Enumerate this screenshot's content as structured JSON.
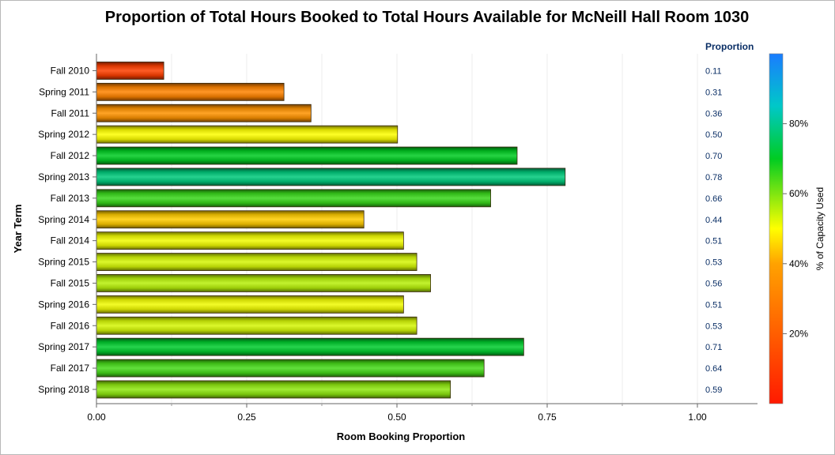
{
  "chart_data": {
    "type": "bar",
    "orientation": "horizontal",
    "title": "Proportion of Total Hours Booked to Total Hours Available for McNeill Hall Room 1030",
    "xlabel": "Room Booking Proportion",
    "ylabel": "Year Term",
    "xlim": [
      0,
      1.1
    ],
    "x_ticks": [
      "0.00",
      "0.25",
      "0.50",
      "0.75",
      "1.00"
    ],
    "categories": [
      "Fall 2010",
      "Spring 2011",
      "Fall 2011",
      "Spring 2012",
      "Fall 2012",
      "Spring 2013",
      "Fall 2013",
      "Spring 2014",
      "Fall 2014",
      "Spring 2015",
      "Fall 2015",
      "Spring 2016",
      "Fall 2016",
      "Spring 2017",
      "Fall 2017",
      "Spring 2018"
    ],
    "values": [
      0.112,
      0.312,
      0.357,
      0.501,
      0.7,
      0.78,
      0.656,
      0.445,
      0.511,
      0.533,
      0.556,
      0.511,
      0.533,
      0.711,
      0.645,
      0.589
    ],
    "value_labels": [
      "0.11",
      "0.31",
      "0.36",
      "0.50",
      "0.70",
      "0.78",
      "0.66",
      "0.44",
      "0.51",
      "0.53",
      "0.56",
      "0.51",
      "0.53",
      "0.71",
      "0.64",
      "0.59"
    ],
    "value_column_header": "Proportion",
    "grid": "vertical",
    "colorbar": {
      "label": "% of Capacity Used",
      "range": [
        0,
        100
      ],
      "ticks": [
        "20%",
        "40%",
        "60%",
        "80%"
      ],
      "tick_values": [
        20,
        40,
        60,
        80
      ],
      "stops": [
        {
          "value": 0,
          "color": "#ff1a00"
        },
        {
          "value": 40,
          "color": "#ffa200"
        },
        {
          "value": 50,
          "color": "#ffff00"
        },
        {
          "value": 70,
          "color": "#00cc22"
        },
        {
          "value": 85,
          "color": "#00c8c8"
        },
        {
          "value": 100,
          "color": "#1a7cff"
        }
      ]
    }
  }
}
